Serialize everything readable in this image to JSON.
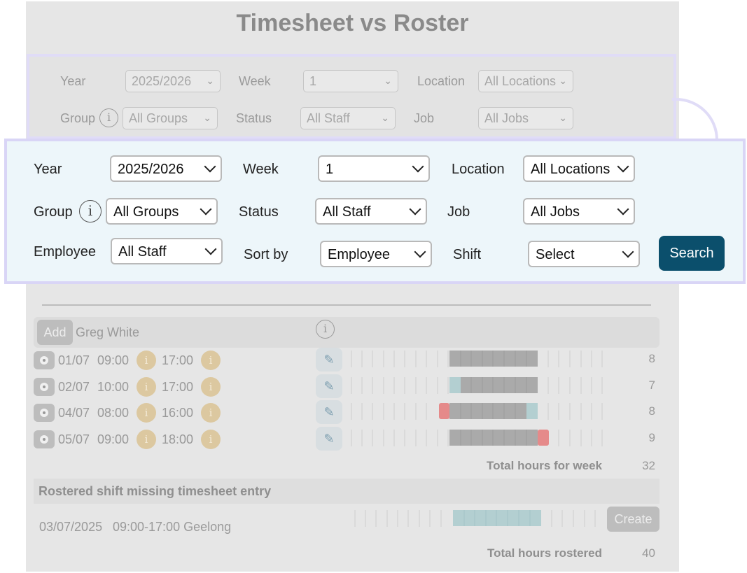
{
  "page": {
    "title": "Timesheet vs Roster"
  },
  "ghost_filter": {
    "year_label": "Year",
    "year_value": "2025/2026",
    "week_label": "Week",
    "week_value": "1",
    "location_label": "Location",
    "location_value": "All Locations",
    "group_label": "Group",
    "group_value": "All Groups",
    "status_label": "Status",
    "status_value": "All Staff",
    "job_label": "Job",
    "job_value": "All Jobs"
  },
  "filter": {
    "year_label": "Year",
    "year_value": "2025/2026",
    "week_label": "Week",
    "week_value": "1",
    "location_label": "Location",
    "location_value": "All Locations",
    "group_label": "Group",
    "group_value": "All Groups",
    "status_label": "Status",
    "status_value": "All Staff",
    "job_label": "Job",
    "job_value": "All Jobs",
    "employee_label": "Employee",
    "employee_value": "All Staff",
    "sortby_label": "Sort by",
    "sortby_value": "Employee",
    "shift_label": "Shift",
    "shift_value": "Select",
    "search_label": "Search",
    "info_glyph": "i"
  },
  "employee": {
    "add_label": "Add",
    "name": "Greg White",
    "info_glyph": "i",
    "shifts": [
      {
        "date": "01/07",
        "start": "09:00",
        "end": "17:00",
        "hours": "8"
      },
      {
        "date": "02/07",
        "start": "10:00",
        "end": "17:00",
        "hours": "7"
      },
      {
        "date": "04/07",
        "start": "08:00",
        "end": "16:00",
        "hours": "8"
      },
      {
        "date": "05/07",
        "start": "09:00",
        "end": "18:00",
        "hours": "9"
      }
    ],
    "total_label": "Total hours for week",
    "total_value": "32"
  },
  "missing": {
    "heading": "Rostered shift missing timesheet entry",
    "date": "03/07/2025",
    "shift": "09:00-17:00 Geelong",
    "create_label": "Create",
    "total_label": "Total hours rostered",
    "total_value": "40"
  },
  "colors": {
    "worked": "#aaaaaa",
    "rostered_only": "#b3cfd1",
    "overtime": "#e58a8a",
    "search_button": "#0b4f6c"
  }
}
